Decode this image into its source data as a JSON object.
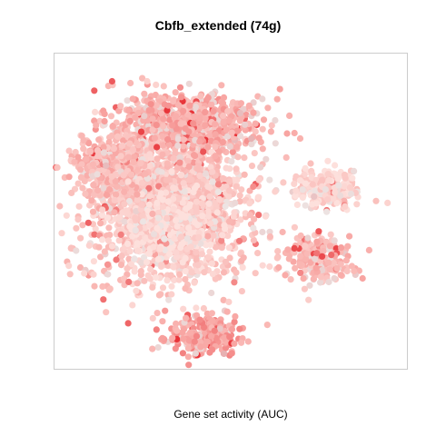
{
  "chart_data": {
    "type": "scatter",
    "title": "Cbfb_extended (74g)",
    "xlabel": "Gene set activity (AUC)",
    "ylabel": "",
    "grid": false,
    "legend": "none",
    "x_range": [
      -1,
      1
    ],
    "y_range": [
      -1,
      1
    ],
    "color_low": "#fde0dc",
    "color_mid": "#f8a5a2",
    "color_high": "#e8353a",
    "color_none": "#e6e6e6",
    "clusters": [
      {
        "name": "main-body",
        "center": [
          -0.33,
          0.05
        ],
        "spread": [
          0.45,
          0.5
        ],
        "count": 1900,
        "activity": 0.22
      },
      {
        "name": "upper-lobe",
        "center": [
          -0.25,
          0.55
        ],
        "spread": [
          0.42,
          0.2
        ],
        "count": 700,
        "activity": 0.42
      },
      {
        "name": "upper-left",
        "center": [
          -0.7,
          0.3
        ],
        "spread": [
          0.2,
          0.2
        ],
        "count": 300,
        "activity": 0.35
      },
      {
        "name": "grey-core",
        "center": [
          -0.35,
          -0.1
        ],
        "spread": [
          0.25,
          0.25
        ],
        "count": 400,
        "activity": 0.06
      },
      {
        "name": "right-island",
        "center": [
          0.55,
          0.15
        ],
        "spread": [
          0.18,
          0.12
        ],
        "count": 250,
        "activity": 0.12
      },
      {
        "name": "right-lower",
        "center": [
          0.5,
          -0.3
        ],
        "spread": [
          0.18,
          0.15
        ],
        "count": 200,
        "activity": 0.35
      },
      {
        "name": "bottom-lobe",
        "center": [
          -0.15,
          -0.78
        ],
        "spread": [
          0.18,
          0.12
        ],
        "count": 260,
        "activity": 0.5
      }
    ]
  }
}
